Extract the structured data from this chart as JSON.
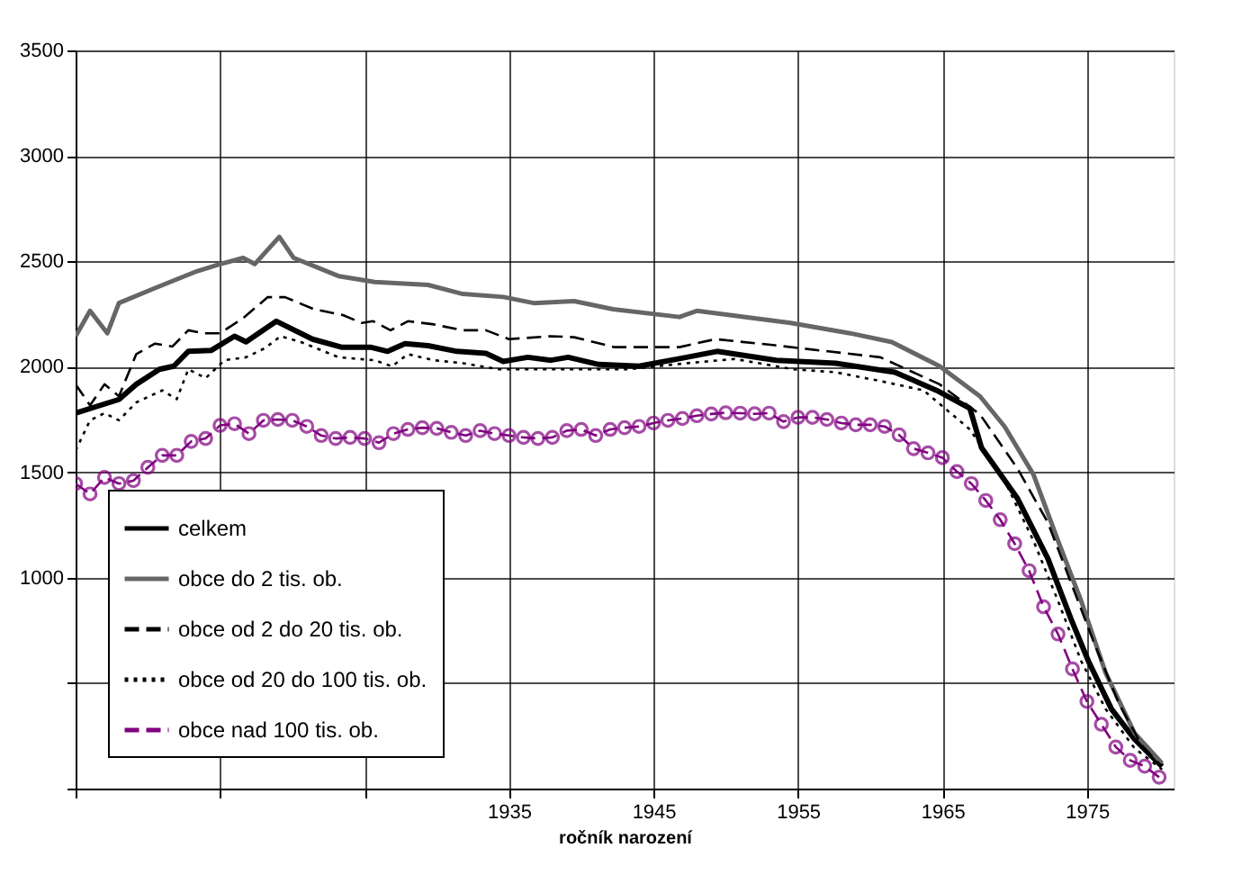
{
  "chart_data": {
    "type": "line",
    "xlabel": "ročník narození",
    "xlim": [
      1905,
      1981
    ],
    "ylim": [
      0,
      3500
    ],
    "xticks": [
      {
        "value": 1905,
        "label": null
      },
      {
        "value": 1915,
        "label": null
      },
      {
        "value": 1925,
        "label": null
      },
      1935,
      1945,
      1955,
      1965,
      1975
    ],
    "yticks": [
      {
        "value": 0,
        "label": null
      },
      {
        "value": 500,
        "label": null
      },
      1000,
      1500,
      2000,
      2500,
      3000,
      3500
    ],
    "grid": true,
    "legend": "bottom left",
    "series": [
      {
        "name": "celkem",
        "color": "#000000",
        "line_style": "solid",
        "marker": "none",
        "x": [
          1905,
          1908,
          1909.2,
          1910.8,
          1911.8,
          1912.8,
          1914.4,
          1916,
          1916.8,
          1918.9,
          1921.4,
          1923.4,
          1925.4,
          1926.6,
          1927.8,
          1929.4,
          1931.4,
          1933.4,
          1934.6,
          1936.3,
          1937.9,
          1939.1,
          1941.2,
          1944,
          1947.3,
          1949.4,
          1953.5,
          1957.6,
          1961.7,
          1964.6,
          1966.9,
          1967.7,
          1970.2,
          1972.3,
          1973.9,
          1975.1,
          1976.7,
          1978.3,
          1980.2
        ],
        "values": [
          1780,
          1845,
          1917,
          1988,
          2003,
          2073,
          2078,
          2145,
          2118,
          2216,
          2131,
          2093,
          2093,
          2073,
          2110,
          2100,
          2073,
          2064,
          2025,
          2045,
          2031,
          2045,
          2011,
          2003,
          2045,
          2073,
          2031,
          2017,
          1974,
          1888,
          1803,
          1617,
          1375,
          1090,
          804,
          605,
          377,
          234,
          105
        ]
      },
      {
        "name": "obce do 2 tis. ob.",
        "color": "#666666",
        "line_style": "solid",
        "marker": "none",
        "x": [
          1905,
          1906,
          1907.2,
          1908,
          1910.5,
          1913.4,
          1915,
          1916.6,
          1917.4,
          1919.1,
          1920.1,
          1923.2,
          1925.7,
          1929.4,
          1931.8,
          1934.6,
          1936.7,
          1939.5,
          1942.2,
          1946.8,
          1948,
          1954.5,
          1958.6,
          1961.5,
          1964.8,
          1967.6,
          1969.3,
          1971.3,
          1973,
          1974.6,
          1976.3,
          1978.3,
          1980.2
        ],
        "values": [
          2145,
          2265,
          2159,
          2302,
          2373,
          2453,
          2487,
          2516,
          2487,
          2616,
          2516,
          2430,
          2402,
          2388,
          2345,
          2331,
          2302,
          2311,
          2273,
          2236,
          2265,
          2208,
          2159,
          2117,
          2003,
          1860,
          1717,
          1489,
          1175,
          890,
          548,
          263,
          120
        ]
      },
      {
        "name": "obce od 2 do 20 tis. ob.",
        "color": "#000000",
        "line_style": "dashed",
        "marker": "none",
        "x": [
          1905,
          1906,
          1907,
          1908,
          1909.2,
          1910.5,
          1911.7,
          1912.8,
          1913.8,
          1915,
          1916.6,
          1918.3,
          1919.5,
          1921.5,
          1923.5,
          1924.8,
          1925.6,
          1926.8,
          1928,
          1929.7,
          1931.8,
          1933.4,
          1935,
          1937.9,
          1939.5,
          1942.3,
          1946.8,
          1949.3,
          1953.4,
          1957.1,
          1960.7,
          1964.8,
          1967.6,
          1970.2,
          1972.3,
          1973.9,
          1975.5,
          1977.2,
          1978.8,
          1980.2
        ],
        "values": [
          1917,
          1817,
          1917,
          1860,
          2060,
          2110,
          2096,
          2173,
          2159,
          2159,
          2231,
          2330,
          2330,
          2273,
          2245,
          2208,
          2216,
          2173,
          2216,
          2202,
          2173,
          2173,
          2131,
          2145,
          2140,
          2093,
          2093,
          2131,
          2102,
          2073,
          2045,
          1917,
          1774,
          1517,
          1261,
          976,
          690,
          405,
          205,
          105
        ]
      },
      {
        "name": "obce od 20 do 100 tis. ob.",
        "color": "#000000",
        "line_style": "dotted",
        "marker": "none",
        "x": [
          1905,
          1906,
          1907,
          1908,
          1909.2,
          1911,
          1912,
          1912.8,
          1914,
          1915.3,
          1916.8,
          1918.1,
          1919.2,
          1920.6,
          1923.2,
          1925.7,
          1926.9,
          1928,
          1929.8,
          1931.8,
          1934.3,
          1939.6,
          1943.2,
          1947.3,
          1950.6,
          1954.7,
          1957.6,
          1960.8,
          1963.7,
          1966.9,
          1969.3,
          1971.3,
          1973,
          1974.6,
          1976.3,
          1978.3,
          1980.2
        ],
        "values": [
          1603,
          1746,
          1780,
          1746,
          1831,
          1888,
          1846,
          1988,
          1946,
          2031,
          2045,
          2088,
          2145,
          2117,
          2045,
          2031,
          2002,
          2060,
          2031,
          2017,
          1988,
          1988,
          1988,
          2017,
          2037,
          1988,
          1974,
          1931,
          1888,
          1703,
          1460,
          1175,
          890,
          605,
          377,
          191,
          91
        ]
      },
      {
        "name": "obce nad 100 tis. ob.",
        "color": "#800080",
        "line_style": "dashed",
        "marker": "circle",
        "x": [
          1905,
          1906,
          1907,
          1908,
          1909,
          1910,
          1911,
          1912,
          1913,
          1914,
          1915,
          1916,
          1917,
          1918,
          1919,
          1920,
          1921,
          1922,
          1923,
          1924,
          1925,
          1926,
          1927,
          1928,
          1929,
          1930,
          1931,
          1932,
          1933,
          1934,
          1935,
          1936,
          1937,
          1938,
          1939,
          1940,
          1941,
          1942,
          1943,
          1944,
          1945,
          1946,
          1947,
          1948,
          1949,
          1950,
          1951,
          1952,
          1953,
          1954,
          1955,
          1956,
          1957,
          1958,
          1959,
          1960,
          1961,
          1962,
          1963,
          1964,
          1965,
          1966,
          1967,
          1968,
          1969,
          1970,
          1971,
          1972,
          1973,
          1974,
          1975,
          1976,
          1977,
          1978,
          1979,
          1980
        ],
        "values": [
          1446,
          1397,
          1475,
          1446,
          1460,
          1523,
          1580,
          1580,
          1646,
          1660,
          1722,
          1730,
          1683,
          1746,
          1750,
          1746,
          1717,
          1674,
          1660,
          1665,
          1660,
          1640,
          1683,
          1703,
          1711,
          1708,
          1689,
          1674,
          1697,
          1683,
          1674,
          1665,
          1660,
          1665,
          1697,
          1703,
          1674,
          1703,
          1711,
          1717,
          1733,
          1746,
          1755,
          1768,
          1776,
          1782,
          1780,
          1777,
          1780,
          1740,
          1760,
          1760,
          1750,
          1733,
          1725,
          1725,
          1717,
          1677,
          1612,
          1592,
          1569,
          1503,
          1446,
          1366,
          1275,
          1161,
          1033,
          862,
          733,
          567,
          413,
          305,
          197,
          134,
          106,
          54
        ]
      }
    ]
  }
}
